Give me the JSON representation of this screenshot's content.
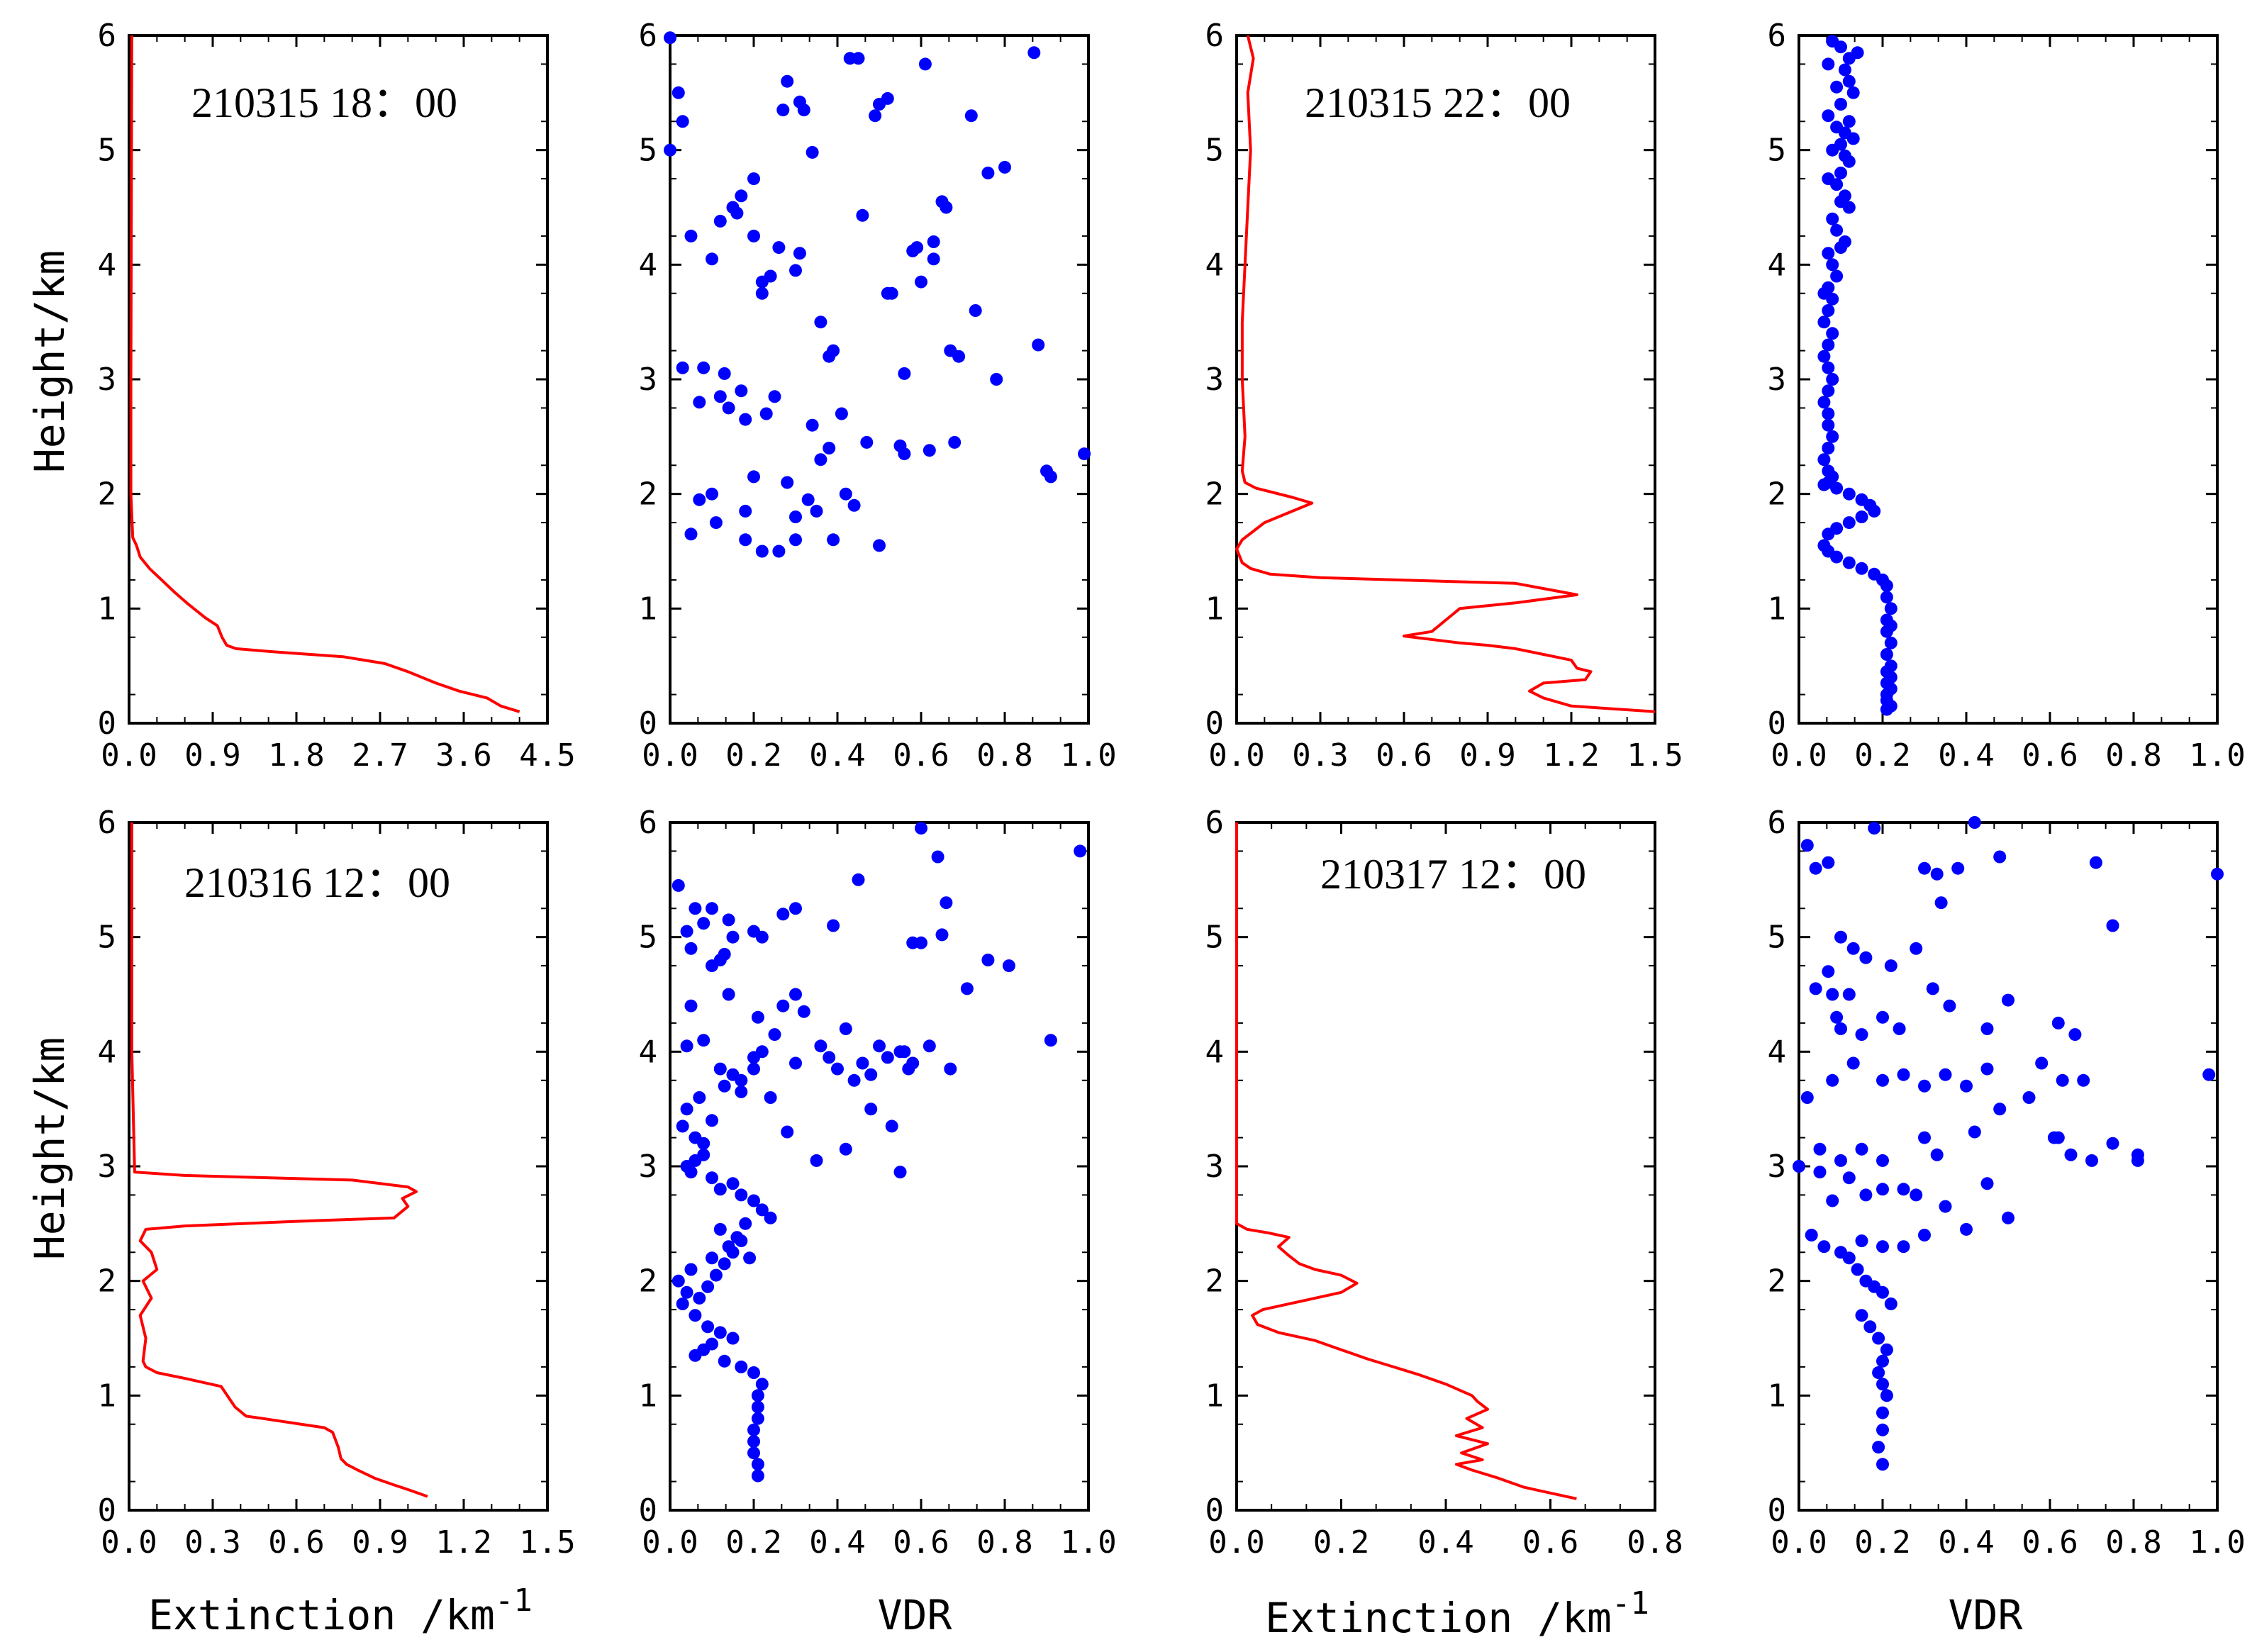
{
  "colors": {
    "extinction_line": "#ff0000",
    "vdr_points": "#0000ff",
    "axes": "#000000"
  },
  "labels": {
    "ylabel": "Height/km",
    "xlabel_extinction": "Extinction /km",
    "xlabel_extinction_sup": "-1",
    "xlabel_vdr": "VDR"
  },
  "chart_data": [
    {
      "type": "line",
      "panel": "row1-col1",
      "annotation": "210315 18：00",
      "xlim": [
        0,
        4.5
      ],
      "ylim": [
        0,
        6
      ],
      "xticks": [
        "0.0",
        "0.9",
        "1.8",
        "2.7",
        "3.6",
        "4.5"
      ],
      "yticks": [
        "0",
        "1",
        "2",
        "3",
        "4",
        "5",
        "6"
      ],
      "ylabel": "Height/km",
      "x": [
        0.03,
        0.02,
        0.02,
        0.04,
        0.08,
        0.12,
        0.22,
        0.35,
        0.48,
        0.62,
        0.82,
        0.95,
        1.0,
        1.05,
        1.15,
        1.6,
        2.3,
        2.75,
        3.0,
        3.3,
        3.55,
        3.85,
        4.0,
        4.2
      ],
      "y": [
        6.0,
        3.0,
        2.0,
        1.62,
        1.55,
        1.45,
        1.35,
        1.25,
        1.15,
        1.05,
        0.92,
        0.85,
        0.75,
        0.68,
        0.65,
        0.62,
        0.58,
        0.52,
        0.45,
        0.35,
        0.28,
        0.22,
        0.15,
        0.1
      ]
    },
    {
      "type": "scatter",
      "panel": "row1-col2",
      "xlim": [
        0,
        1.0
      ],
      "ylim": [
        0,
        6
      ],
      "xticks": [
        "0.0",
        "0.2",
        "0.4",
        "0.6",
        "0.8",
        "1.0"
      ],
      "yticks": [
        "0",
        "1",
        "2",
        "3",
        "4",
        "5",
        "6"
      ],
      "x": [
        0.0,
        0.02,
        0.03,
        0.0,
        0.28,
        0.32,
        0.31,
        0.34,
        0.27,
        0.43,
        0.45,
        0.61,
        0.87,
        0.52,
        0.5,
        0.49,
        0.72,
        0.76,
        0.8,
        0.65,
        0.66,
        0.46,
        0.58,
        0.59,
        0.63,
        0.63,
        0.6,
        0.53,
        0.2,
        0.17,
        0.15,
        0.16,
        0.12,
        0.05,
        0.1,
        0.2,
        0.26,
        0.24,
        0.22,
        0.22,
        0.3,
        0.31,
        0.36,
        0.52,
        0.73,
        0.67,
        0.69,
        0.78,
        0.88,
        0.9,
        0.91,
        0.99,
        0.68,
        0.55,
        0.56,
        0.62,
        0.56,
        0.08,
        0.13,
        0.12,
        0.17,
        0.03,
        0.07,
        0.14,
        0.18,
        0.23,
        0.25,
        0.34,
        0.38,
        0.39,
        0.41,
        0.47,
        0.05,
        0.18,
        0.18,
        0.22,
        0.26,
        0.3,
        0.35,
        0.07,
        0.11,
        0.1,
        0.2,
        0.28,
        0.36,
        0.38,
        0.42,
        0.44,
        0.5,
        0.3,
        0.33,
        0.39
      ],
      "y": [
        5.98,
        5.5,
        5.25,
        5.0,
        5.6,
        5.35,
        5.42,
        4.98,
        5.35,
        5.8,
        5.8,
        5.75,
        5.85,
        5.45,
        5.4,
        5.3,
        5.3,
        4.8,
        4.85,
        4.55,
        4.5,
        4.43,
        4.12,
        4.15,
        4.2,
        4.05,
        3.85,
        3.75,
        4.75,
        4.6,
        4.5,
        4.45,
        4.38,
        4.25,
        4.05,
        4.25,
        4.15,
        3.9,
        3.85,
        3.75,
        3.95,
        4.1,
        3.5,
        3.75,
        3.6,
        3.25,
        3.2,
        3.0,
        3.3,
        2.2,
        2.15,
        2.35,
        2.45,
        2.42,
        2.35,
        2.38,
        3.05,
        3.1,
        3.05,
        2.85,
        2.9,
        3.1,
        2.8,
        2.75,
        2.65,
        2.7,
        2.85,
        2.6,
        3.2,
        3.25,
        2.7,
        2.45,
        1.65,
        1.85,
        1.6,
        1.5,
        1.5,
        1.6,
        1.85,
        1.95,
        1.75,
        2.0,
        2.15,
        2.1,
        2.3,
        2.4,
        2.0,
        1.9,
        1.55,
        1.8,
        1.95,
        1.6
      ]
    },
    {
      "type": "line",
      "panel": "row1-col3",
      "annotation": "210315 22：00",
      "xlim": [
        0,
        1.5
      ],
      "ylim": [
        0,
        6
      ],
      "xticks": [
        "0.0",
        "0.3",
        "0.6",
        "0.9",
        "1.2",
        "1.5"
      ],
      "yticks": [
        "0",
        "1",
        "2",
        "3",
        "4",
        "5",
        "6"
      ],
      "x": [
        0.04,
        0.06,
        0.04,
        0.05,
        0.04,
        0.03,
        0.02,
        0.02,
        0.03,
        0.02,
        0.03,
        0.07,
        0.2,
        0.27,
        0.2,
        0.1,
        0.02,
        0.0,
        0.02,
        0.05,
        0.12,
        0.3,
        1.0,
        1.22,
        1.0,
        0.8,
        0.75,
        0.7,
        0.6,
        0.8,
        0.9,
        1.0,
        1.1,
        1.2,
        1.22,
        1.27,
        1.25,
        1.1,
        1.05,
        1.1,
        1.2,
        1.5
      ],
      "y": [
        6.0,
        5.8,
        5.5,
        5.0,
        4.5,
        4.0,
        3.5,
        3.0,
        2.5,
        2.2,
        2.1,
        2.05,
        1.97,
        1.92,
        1.85,
        1.75,
        1.6,
        1.52,
        1.4,
        1.35,
        1.3,
        1.27,
        1.22,
        1.12,
        1.05,
        1.0,
        0.9,
        0.8,
        0.76,
        0.7,
        0.68,
        0.65,
        0.6,
        0.55,
        0.48,
        0.45,
        0.38,
        0.35,
        0.28,
        0.22,
        0.15,
        0.1
      ]
    },
    {
      "type": "scatter",
      "panel": "row1-col4",
      "xlim": [
        0,
        1.0
      ],
      "ylim": [
        0,
        6
      ],
      "xticks": [
        "0.0",
        "0.2",
        "0.4",
        "0.6",
        "0.8",
        "1.0"
      ],
      "yticks": [
        "0",
        "1",
        "2",
        "3",
        "4",
        "5",
        "6"
      ],
      "x": [
        0.08,
        0.1,
        0.14,
        0.12,
        0.07,
        0.11,
        0.12,
        0.09,
        0.13,
        0.1,
        0.07,
        0.12,
        0.09,
        0.11,
        0.13,
        0.1,
        0.08,
        0.11,
        0.12,
        0.1,
        0.07,
        0.09,
        0.11,
        0.1,
        0.12,
        0.08,
        0.09,
        0.11,
        0.1,
        0.07,
        0.08,
        0.09,
        0.07,
        0.06,
        0.08,
        0.07,
        0.06,
        0.08,
        0.07,
        0.06,
        0.07,
        0.08,
        0.07,
        0.06,
        0.07,
        0.07,
        0.08,
        0.07,
        0.06,
        0.07,
        0.08,
        0.07,
        0.06,
        0.09,
        0.12,
        0.15,
        0.17,
        0.18,
        0.15,
        0.12,
        0.09,
        0.07,
        0.06,
        0.07,
        0.09,
        0.12,
        0.15,
        0.18,
        0.2,
        0.21,
        0.21,
        0.22,
        0.21,
        0.22,
        0.21,
        0.22,
        0.21,
        0.22,
        0.21,
        0.22,
        0.21,
        0.22,
        0.21,
        0.21,
        0.22,
        0.21
      ],
      "y": [
        5.95,
        5.9,
        5.85,
        5.8,
        5.75,
        5.7,
        5.6,
        5.55,
        5.5,
        5.4,
        5.3,
        5.25,
        5.2,
        5.15,
        5.1,
        5.05,
        5.0,
        4.95,
        4.9,
        4.8,
        4.75,
        4.7,
        4.6,
        4.55,
        4.5,
        4.4,
        4.3,
        4.2,
        4.15,
        4.1,
        4.0,
        3.9,
        3.8,
        3.75,
        3.7,
        3.6,
        3.5,
        3.4,
        3.3,
        3.2,
        3.1,
        3.0,
        2.9,
        2.8,
        2.7,
        2.6,
        2.5,
        2.4,
        2.3,
        2.2,
        2.15,
        2.1,
        2.08,
        2.05,
        2.0,
        1.95,
        1.9,
        1.85,
        1.8,
        1.75,
        1.7,
        1.65,
        1.55,
        1.5,
        1.45,
        1.4,
        1.35,
        1.3,
        1.25,
        1.2,
        1.1,
        1.0,
        0.9,
        0.85,
        0.8,
        0.7,
        0.6,
        0.5,
        0.45,
        0.4,
        0.35,
        0.3,
        0.25,
        0.2,
        0.15,
        0.12
      ]
    },
    {
      "type": "line",
      "panel": "row2-col1",
      "annotation": "210316 12：00",
      "xlim": [
        0,
        1.5
      ],
      "ylim": [
        0,
        6
      ],
      "xticks": [
        "0.0",
        "0.3",
        "0.6",
        "0.9",
        "1.2",
        "1.5"
      ],
      "yticks": [
        "0",
        "1",
        "2",
        "3",
        "4",
        "5",
        "6"
      ],
      "x": [
        0.01,
        0.01,
        0.01,
        0.02,
        0.2,
        0.8,
        1.0,
        1.03,
        0.98,
        1.0,
        0.95,
        0.6,
        0.2,
        0.06,
        0.04,
        0.08,
        0.1,
        0.05,
        0.08,
        0.04,
        0.06,
        0.05,
        0.06,
        0.1,
        0.2,
        0.33,
        0.38,
        0.42,
        0.48,
        0.7,
        0.73,
        0.75,
        0.76,
        0.78,
        0.82,
        0.88,
        0.95,
        1.0,
        1.07
      ],
      "y": [
        6.0,
        5.0,
        4.0,
        2.95,
        2.92,
        2.88,
        2.82,
        2.78,
        2.72,
        2.65,
        2.55,
        2.52,
        2.48,
        2.45,
        2.35,
        2.25,
        2.1,
        2.0,
        1.85,
        1.7,
        1.5,
        1.3,
        1.25,
        1.2,
        1.15,
        1.08,
        0.9,
        0.82,
        0.8,
        0.72,
        0.68,
        0.55,
        0.45,
        0.4,
        0.35,
        0.28,
        0.22,
        0.18,
        0.12
      ]
    },
    {
      "type": "scatter",
      "panel": "row2-col2",
      "xlim": [
        0,
        1.0
      ],
      "ylim": [
        0,
        6
      ],
      "xticks": [
        "0.0",
        "0.2",
        "0.4",
        "0.6",
        "0.8",
        "1.0"
      ],
      "yticks": [
        "0",
        "1",
        "2",
        "3",
        "4",
        "5",
        "6"
      ],
      "x": [
        0.02,
        0.06,
        0.08,
        0.1,
        0.14,
        0.15,
        0.2,
        0.05,
        0.04,
        0.13,
        0.12,
        0.1,
        0.14,
        0.22,
        0.27,
        0.3,
        0.39,
        0.45,
        0.6,
        0.64,
        0.66,
        0.6,
        0.98,
        0.76,
        0.81,
        0.71,
        0.58,
        0.65,
        0.91,
        0.56,
        0.58,
        0.48,
        0.36,
        0.3,
        0.21,
        0.25,
        0.27,
        0.32,
        0.38,
        0.4,
        0.42,
        0.44,
        0.46,
        0.5,
        0.52,
        0.48,
        0.55,
        0.57,
        0.62,
        0.67,
        0.07,
        0.04,
        0.03,
        0.06,
        0.08,
        0.1,
        0.13,
        0.15,
        0.17,
        0.2,
        0.24,
        0.28,
        0.04,
        0.05,
        0.08,
        0.12,
        0.17,
        0.2,
        0.22,
        0.3,
        0.35,
        0.42,
        0.53,
        0.55,
        0.04,
        0.05,
        0.06,
        0.08,
        0.1,
        0.12,
        0.15,
        0.17,
        0.2,
        0.22,
        0.24,
        0.12,
        0.18,
        0.16,
        0.14,
        0.1,
        0.05,
        0.02,
        0.04,
        0.07,
        0.09,
        0.11,
        0.13,
        0.15,
        0.17,
        0.19,
        0.03,
        0.06,
        0.09,
        0.12,
        0.15,
        0.1,
        0.08,
        0.06,
        0.13,
        0.17,
        0.2,
        0.22,
        0.21,
        0.21,
        0.21,
        0.2,
        0.2,
        0.2,
        0.21,
        0.21
      ],
      "y": [
        5.45,
        5.25,
        5.12,
        5.25,
        5.15,
        5.0,
        5.05,
        4.9,
        5.05,
        4.85,
        4.8,
        4.75,
        4.5,
        5.0,
        5.2,
        5.25,
        5.1,
        5.5,
        5.95,
        5.7,
        5.3,
        4.95,
        5.75,
        4.8,
        4.75,
        4.55,
        4.95,
        5.02,
        4.1,
        4.0,
        3.9,
        3.8,
        4.05,
        4.5,
        4.3,
        4.15,
        4.4,
        4.35,
        3.95,
        3.85,
        4.2,
        3.75,
        3.9,
        4.05,
        3.95,
        3.5,
        4.0,
        3.85,
        4.05,
        3.85,
        3.6,
        3.5,
        3.35,
        3.25,
        3.2,
        3.4,
        3.7,
        3.8,
        3.65,
        3.85,
        3.6,
        3.3,
        4.05,
        4.4,
        4.1,
        3.85,
        3.75,
        3.95,
        4.0,
        3.9,
        3.05,
        3.15,
        3.35,
        2.95,
        3.0,
        2.95,
        3.05,
        3.1,
        2.9,
        2.8,
        2.85,
        2.75,
        2.7,
        2.62,
        2.55,
        2.45,
        2.5,
        2.38,
        2.3,
        2.2,
        2.1,
        2.0,
        1.9,
        1.85,
        1.95,
        2.05,
        2.15,
        2.25,
        2.35,
        2.2,
        1.8,
        1.7,
        1.6,
        1.55,
        1.5,
        1.45,
        1.4,
        1.35,
        1.3,
        1.25,
        1.2,
        1.1,
        1.0,
        0.9,
        0.8,
        0.7,
        0.6,
        0.5,
        0.4,
        0.3
      ]
    },
    {
      "type": "line",
      "panel": "row2-col3",
      "annotation": "210317 12：00",
      "xlim": [
        0,
        0.8
      ],
      "ylim": [
        0,
        6
      ],
      "xticks": [
        "0.0",
        "0.2",
        "0.4",
        "0.6",
        "0.8"
      ],
      "yticks": [
        "0",
        "1",
        "2",
        "3",
        "4",
        "5",
        "6"
      ],
      "x": [
        0.0,
        0.0,
        0.0,
        0.0,
        0.02,
        0.06,
        0.1,
        0.08,
        0.1,
        0.12,
        0.15,
        0.2,
        0.23,
        0.2,
        0.15,
        0.05,
        0.03,
        0.04,
        0.08,
        0.15,
        0.2,
        0.25,
        0.3,
        0.35,
        0.4,
        0.45,
        0.46,
        0.48,
        0.44,
        0.47,
        0.42,
        0.48,
        0.43,
        0.47,
        0.42,
        0.45,
        0.5,
        0.55,
        0.6,
        0.65
      ],
      "y": [
        6.0,
        5.0,
        4.0,
        2.5,
        2.45,
        2.42,
        2.38,
        2.3,
        2.22,
        2.15,
        2.1,
        2.05,
        1.98,
        1.9,
        1.85,
        1.75,
        1.7,
        1.62,
        1.55,
        1.48,
        1.4,
        1.32,
        1.25,
        1.18,
        1.1,
        1.0,
        0.95,
        0.88,
        0.8,
        0.72,
        0.65,
        0.58,
        0.5,
        0.44,
        0.4,
        0.35,
        0.28,
        0.2,
        0.15,
        0.1
      ]
    },
    {
      "type": "scatter",
      "panel": "row2-col4",
      "xlim": [
        0,
        1.0
      ],
      "ylim": [
        0,
        6
      ],
      "xticks": [
        "0.0",
        "0.2",
        "0.4",
        "0.6",
        "0.8",
        "1.0"
      ],
      "yticks": [
        "0",
        "1",
        "2",
        "3",
        "4",
        "5",
        "6"
      ],
      "x": [
        0.02,
        0.04,
        0.07,
        0.18,
        0.3,
        0.33,
        0.34,
        0.48,
        0.71,
        0.42,
        0.38,
        1.0,
        0.75,
        0.1,
        0.13,
        0.16,
        0.07,
        0.04,
        0.08,
        0.12,
        0.2,
        0.32,
        0.28,
        0.22,
        0.09,
        0.1,
        0.15,
        0.24,
        0.36,
        0.45,
        0.5,
        0.62,
        0.66,
        0.02,
        0.08,
        0.13,
        0.2,
        0.25,
        0.3,
        0.35,
        0.4,
        0.45,
        0.55,
        0.58,
        0.63,
        0.68,
        0.98,
        0.0,
        0.05,
        0.1,
        0.15,
        0.2,
        0.3,
        0.33,
        0.42,
        0.48,
        0.61,
        0.65,
        0.7,
        0.75,
        0.81,
        0.81,
        0.62,
        0.05,
        0.08,
        0.12,
        0.16,
        0.2,
        0.25,
        0.28,
        0.35,
        0.4,
        0.45,
        0.5,
        0.03,
        0.06,
        0.1,
        0.15,
        0.2,
        0.25,
        0.3,
        0.12,
        0.14,
        0.16,
        0.18,
        0.2,
        0.22,
        0.15,
        0.17,
        0.19,
        0.21,
        0.2,
        0.19,
        0.2,
        0.21,
        0.2,
        0.2,
        0.19,
        0.2
      ],
      "y": [
        5.8,
        5.6,
        5.65,
        5.95,
        5.6,
        5.55,
        5.3,
        5.7,
        5.65,
        6.0,
        5.6,
        5.55,
        5.1,
        5.0,
        4.9,
        4.82,
        4.7,
        4.55,
        4.5,
        4.5,
        4.3,
        4.55,
        4.9,
        4.75,
        4.3,
        4.2,
        4.15,
        4.2,
        4.4,
        4.2,
        4.45,
        4.25,
        4.15,
        3.6,
        3.75,
        3.9,
        3.75,
        3.8,
        3.7,
        3.8,
        3.7,
        3.85,
        3.6,
        3.9,
        3.75,
        3.75,
        3.8,
        3.0,
        3.15,
        3.05,
        3.15,
        3.05,
        3.25,
        3.1,
        3.3,
        3.5,
        3.25,
        3.1,
        3.05,
        3.2,
        3.1,
        3.05,
        3.25,
        2.95,
        2.7,
        2.9,
        2.75,
        2.8,
        2.8,
        2.75,
        2.65,
        2.45,
        2.85,
        2.55,
        2.4,
        2.3,
        2.25,
        2.35,
        2.3,
        2.3,
        2.4,
        2.2,
        2.1,
        2.0,
        1.95,
        1.9,
        1.8,
        1.7,
        1.6,
        1.5,
        1.4,
        1.3,
        1.2,
        1.1,
        1.0,
        0.85,
        0.7,
        0.55,
        0.4
      ]
    }
  ]
}
